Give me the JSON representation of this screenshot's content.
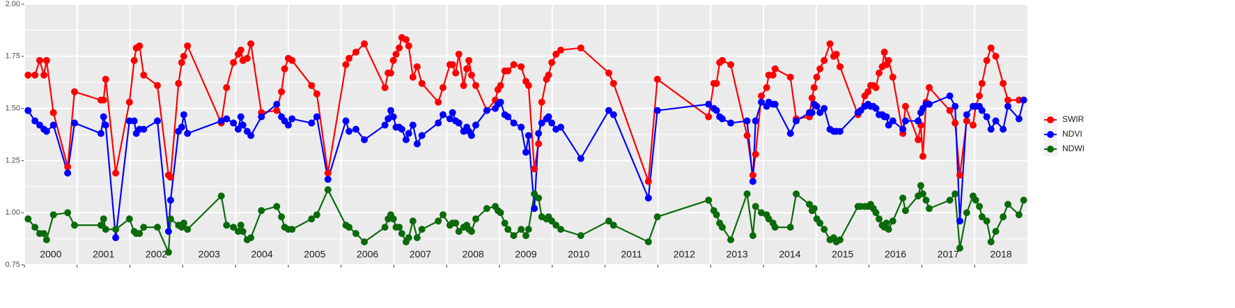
{
  "chart_data": {
    "type": "line",
    "x": [
      2000.07,
      2000.2,
      2000.29,
      2000.37,
      2000.42,
      2000.55,
      2000.82,
      2000.95,
      2001.45,
      2001.5,
      2001.54,
      2001.73,
      2001.99,
      2002.08,
      2002.12,
      2002.18,
      2002.26,
      2002.52,
      2002.73,
      2002.77,
      2002.92,
      2002.98,
      2003.02,
      2003.09,
      2003.73,
      2003.83,
      2003.96,
      2004.05,
      2004.1,
      2004.14,
      2004.22,
      2004.29,
      2004.49,
      2004.78,
      2004.87,
      2004.93,
      2005.0,
      2005.07,
      2005.44,
      2005.54,
      2005.75,
      2006.09,
      2006.15,
      2006.28,
      2006.44,
      2006.83,
      2006.89,
      2006.94,
      2006.99,
      2007.04,
      2007.1,
      2007.15,
      2007.23,
      2007.28,
      2007.36,
      2007.44,
      2007.53,
      2007.84,
      2007.93,
      2008.06,
      2008.11,
      2008.17,
      2008.23,
      2008.32,
      2008.38,
      2008.42,
      2008.47,
      2008.55,
      2008.76,
      2008.92,
      2008.97,
      2009.02,
      2009.1,
      2009.16,
      2009.27,
      2009.41,
      2009.5,
      2009.55,
      2009.66,
      2009.74,
      2009.8,
      2009.89,
      2009.93,
      2009.99,
      2010.07,
      2010.16,
      2010.54,
      2011.07,
      2011.16,
      2011.82,
      2011.99,
      2012.96,
      2013.06,
      2013.11,
      2013.17,
      2013.22,
      2013.38,
      2013.69,
      2013.8,
      2013.85,
      2013.96,
      2014.06,
      2014.1,
      2014.18,
      2014.22,
      2014.51,
      2014.62,
      2014.87,
      2014.92,
      2014.96,
      2015.01,
      2015.07,
      2015.15,
      2015.26,
      2015.33,
      2015.38,
      2015.45,
      2015.79,
      2015.84,
      2015.92,
      2015.98,
      2016.03,
      2016.08,
      2016.13,
      2016.19,
      2016.25,
      2016.29,
      2016.33,
      2016.37,
      2016.45,
      2016.64,
      2016.69,
      2016.93,
      2016.98,
      2017.02,
      2017.08,
      2017.14,
      2017.53,
      2017.63,
      2017.72,
      2017.85,
      2017.97,
      2018.02,
      2018.09,
      2018.14,
      2018.23,
      2018.31,
      2018.4,
      2018.54,
      2018.63,
      2018.84,
      2018.93
    ],
    "series": [
      {
        "name": "SWIR",
        "color": "#ff0000",
        "values": [
          1.66,
          1.66,
          1.73,
          1.66,
          1.73,
          1.48,
          1.22,
          1.58,
          1.54,
          1.54,
          1.64,
          1.19,
          1.53,
          1.73,
          1.79,
          1.8,
          1.66,
          1.61,
          1.18,
          1.17,
          1.62,
          1.72,
          1.75,
          1.8,
          1.43,
          1.6,
          1.72,
          1.76,
          1.78,
          1.73,
          1.74,
          1.81,
          1.48,
          1.49,
          1.58,
          1.69,
          1.74,
          1.73,
          1.61,
          1.57,
          1.19,
          1.71,
          1.74,
          1.77,
          1.81,
          1.6,
          1.67,
          1.67,
          1.73,
          1.76,
          1.79,
          1.84,
          1.83,
          1.8,
          1.65,
          1.7,
          1.62,
          1.53,
          1.6,
          1.71,
          1.71,
          1.67,
          1.76,
          1.61,
          1.69,
          1.73,
          1.66,
          1.61,
          1.49,
          1.54,
          1.59,
          1.61,
          1.68,
          1.68,
          1.71,
          1.7,
          1.63,
          1.61,
          1.21,
          1.33,
          1.53,
          1.64,
          1.66,
          1.72,
          1.76,
          1.78,
          1.79,
          1.67,
          1.62,
          1.15,
          1.64,
          1.46,
          1.62,
          1.62,
          1.72,
          1.73,
          1.71,
          1.37,
          1.18,
          1.28,
          1.56,
          1.6,
          1.66,
          1.66,
          1.69,
          1.65,
          1.45,
          1.46,
          1.55,
          1.6,
          1.65,
          1.69,
          1.73,
          1.81,
          1.75,
          1.76,
          1.7,
          1.47,
          1.49,
          1.56,
          1.58,
          1.61,
          1.61,
          1.6,
          1.67,
          1.7,
          1.77,
          1.71,
          1.73,
          1.65,
          1.38,
          1.51,
          1.35,
          1.42,
          1.27,
          1.53,
          1.6,
          1.49,
          1.43,
          1.18,
          1.44,
          1.42,
          1.51,
          1.56,
          1.62,
          1.73,
          1.79,
          1.75,
          1.62,
          1.54,
          1.54,
          1.54
        ]
      },
      {
        "name": "NDVI",
        "color": "#0000ff",
        "values": [
          1.49,
          1.44,
          1.42,
          1.4,
          1.39,
          1.42,
          1.19,
          1.43,
          1.38,
          1.46,
          1.42,
          0.88,
          1.44,
          1.44,
          1.38,
          1.4,
          1.4,
          1.44,
          0.91,
          1.06,
          1.39,
          1.41,
          1.47,
          1.38,
          1.44,
          1.45,
          1.43,
          1.4,
          1.46,
          1.42,
          1.39,
          1.37,
          1.46,
          1.52,
          1.46,
          1.44,
          1.42,
          1.45,
          1.43,
          1.46,
          1.16,
          1.44,
          1.39,
          1.4,
          1.35,
          1.42,
          1.45,
          1.49,
          1.46,
          1.41,
          1.41,
          1.4,
          1.35,
          1.38,
          1.42,
          1.33,
          1.37,
          1.43,
          1.47,
          1.45,
          1.48,
          1.44,
          1.43,
          1.39,
          1.41,
          1.39,
          1.37,
          1.42,
          1.49,
          1.5,
          1.52,
          1.53,
          1.47,
          1.46,
          1.43,
          1.41,
          1.29,
          1.37,
          1.02,
          1.38,
          1.43,
          1.45,
          1.46,
          1.43,
          1.4,
          1.41,
          1.26,
          1.49,
          1.47,
          1.07,
          1.49,
          1.52,
          1.5,
          1.49,
          1.46,
          1.45,
          1.43,
          1.44,
          1.15,
          1.44,
          1.53,
          1.51,
          1.53,
          1.52,
          1.52,
          1.38,
          1.44,
          1.48,
          1.48,
          1.52,
          1.51,
          1.48,
          1.5,
          1.4,
          1.39,
          1.39,
          1.39,
          1.48,
          1.49,
          1.51,
          1.52,
          1.51,
          1.51,
          1.5,
          1.47,
          1.47,
          1.46,
          1.46,
          1.42,
          1.44,
          1.4,
          1.44,
          1.44,
          1.48,
          1.5,
          1.52,
          1.52,
          1.56,
          1.51,
          0.96,
          1.47,
          1.51,
          1.51,
          1.51,
          1.49,
          1.46,
          1.4,
          1.44,
          1.4,
          1.51,
          1.45,
          1.54
        ]
      },
      {
        "name": "NDWI",
        "color": "#0b6a0b",
        "values": [
          0.97,
          0.93,
          0.9,
          0.9,
          0.87,
          0.99,
          1.0,
          0.94,
          0.94,
          0.97,
          0.92,
          0.92,
          0.97,
          0.91,
          0.9,
          0.9,
          0.93,
          0.93,
          0.81,
          0.97,
          0.94,
          0.93,
          0.95,
          0.92,
          1.08,
          0.94,
          0.93,
          0.91,
          0.94,
          0.91,
          0.87,
          0.88,
          1.01,
          1.03,
          0.98,
          0.93,
          0.92,
          0.92,
          0.97,
          0.99,
          1.11,
          0.94,
          0.93,
          0.9,
          0.86,
          0.93,
          0.97,
          0.99,
          0.97,
          0.93,
          0.93,
          0.9,
          0.86,
          0.88,
          0.96,
          0.88,
          0.92,
          0.96,
          0.99,
          0.94,
          0.95,
          0.95,
          0.91,
          0.93,
          0.94,
          0.92,
          0.91,
          0.97,
          1.02,
          1.03,
          1.01,
          1.0,
          0.95,
          0.92,
          0.89,
          0.92,
          0.89,
          0.92,
          1.09,
          1.07,
          0.98,
          0.97,
          0.98,
          0.96,
          0.94,
          0.92,
          0.89,
          0.96,
          0.94,
          0.86,
          0.98,
          1.06,
          1.01,
          0.99,
          0.95,
          0.93,
          0.87,
          1.09,
          0.89,
          1.03,
          1.0,
          0.99,
          0.97,
          0.95,
          0.93,
          0.93,
          1.09,
          1.04,
          1.01,
          1.02,
          0.97,
          0.95,
          0.92,
          0.87,
          0.88,
          0.86,
          0.87,
          1.03,
          1.03,
          1.03,
          1.03,
          1.04,
          1.02,
          1.0,
          0.97,
          0.94,
          0.93,
          0.95,
          0.92,
          0.96,
          1.07,
          1.01,
          1.08,
          1.13,
          1.09,
          1.06,
          1.02,
          1.06,
          1.09,
          0.83,
          1.0,
          1.08,
          1.06,
          1.03,
          0.98,
          0.96,
          0.86,
          0.91,
          0.98,
          1.04,
          0.99,
          1.06
        ]
      }
    ],
    "xlim": [
      2000,
      2019
    ],
    "xticks": [
      {
        "value": 2000,
        "label": "2000"
      },
      {
        "value": 2001,
        "label": "2001"
      },
      {
        "value": 2002,
        "label": "2002"
      },
      {
        "value": 2003,
        "label": "2003"
      },
      {
        "value": 2004,
        "label": "2004"
      },
      {
        "value": 2005,
        "label": "2005"
      },
      {
        "value": 2006,
        "label": "2006"
      },
      {
        "value": 2007,
        "label": "2007"
      },
      {
        "value": 2008,
        "label": "2008"
      },
      {
        "value": 2009,
        "label": "2009"
      },
      {
        "value": 2010,
        "label": "2010"
      },
      {
        "value": 2011,
        "label": "2011"
      },
      {
        "value": 2012,
        "label": "2012"
      },
      {
        "value": 2013,
        "label": "2013"
      },
      {
        "value": 2014,
        "label": "2014"
      },
      {
        "value": 2015,
        "label": "2015"
      },
      {
        "value": 2016,
        "label": "2016"
      },
      {
        "value": 2017,
        "label": "2017"
      },
      {
        "value": 2018,
        "label": "2018"
      }
    ],
    "ylim": [
      0.75,
      2.0
    ],
    "yticks": [
      {
        "value": 0.75,
        "label": "0.75"
      },
      {
        "value": 1.0,
        "label": "1.00"
      },
      {
        "value": 1.25,
        "label": "1.25"
      },
      {
        "value": 1.5,
        "label": "1.50"
      },
      {
        "value": 1.75,
        "label": "1.75"
      },
      {
        "value": 2.0,
        "label": "2.00"
      }
    ],
    "grid": true,
    "legend": "right"
  }
}
